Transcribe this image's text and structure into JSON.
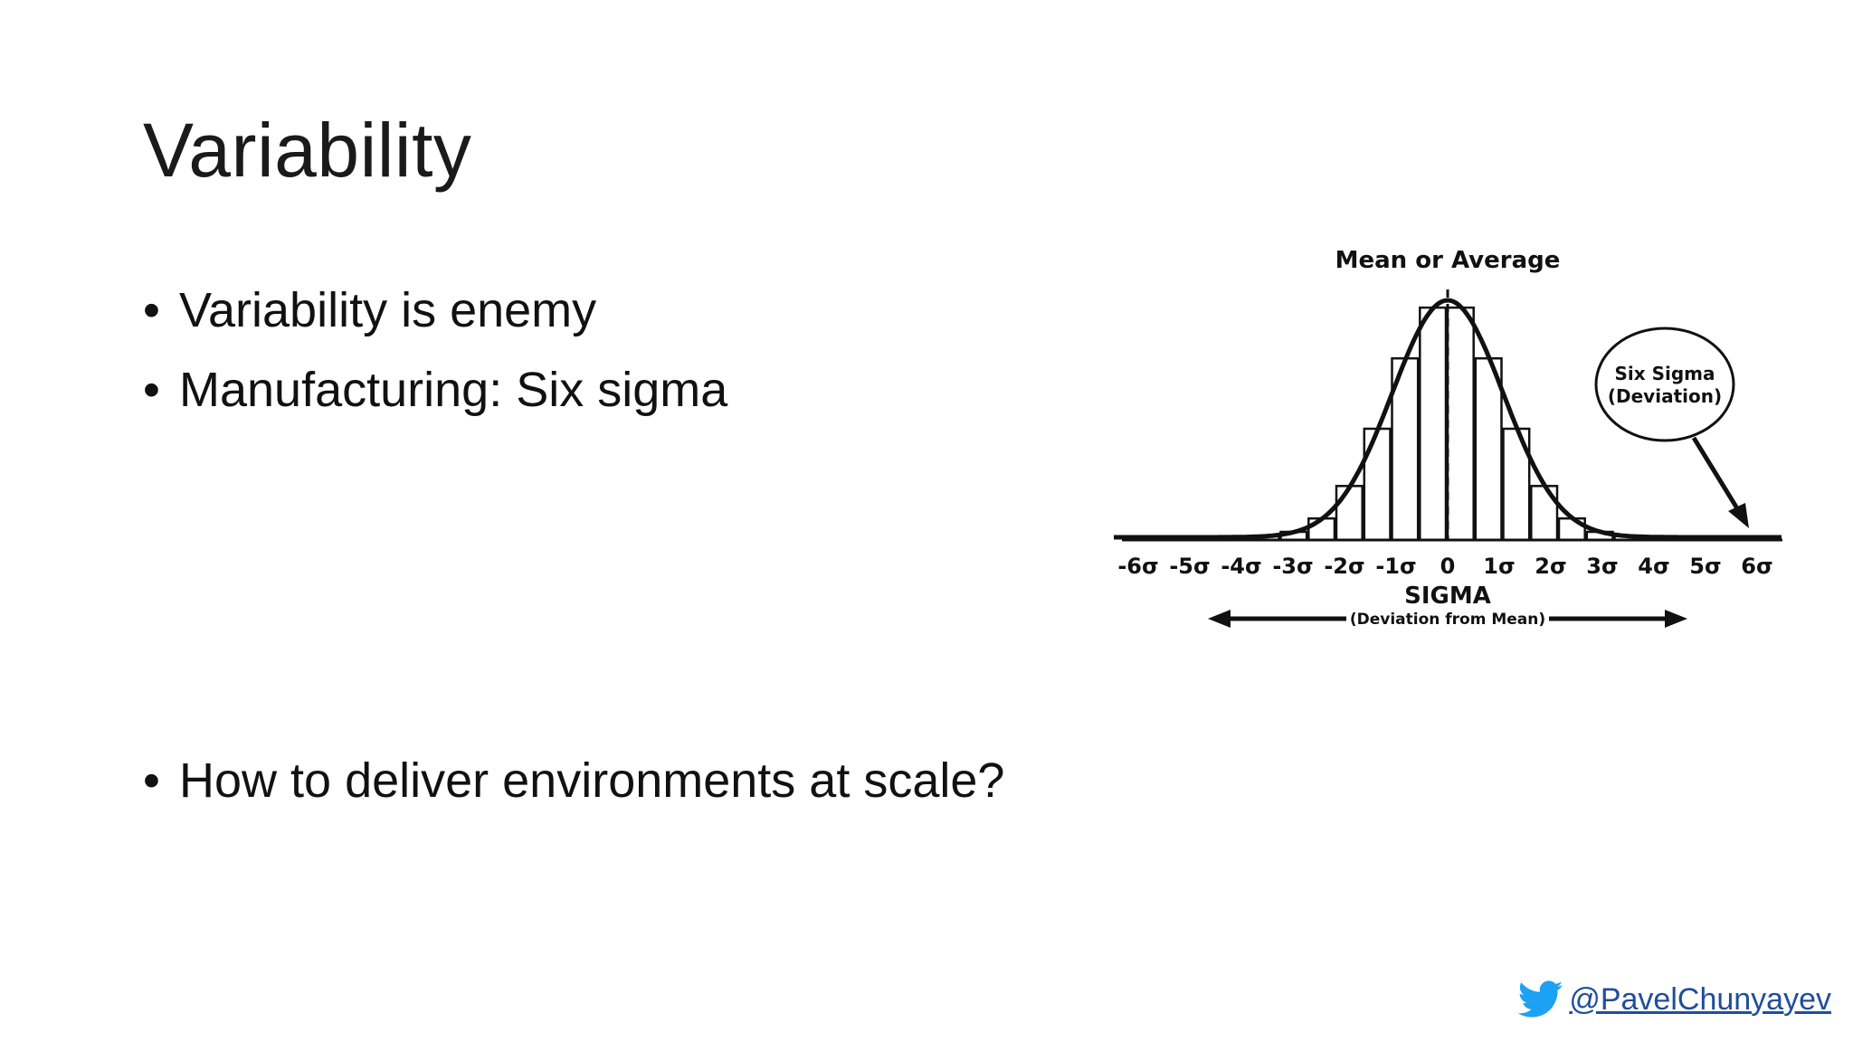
{
  "slide": {
    "title": "Variability",
    "bullets": [
      "Variability is enemy",
      "Manufacturing: Six sigma",
      "How to deliver environments at scale?"
    ],
    "bullet_char": "•"
  },
  "figure": {
    "top_label": "Mean or Average",
    "callout_line1": "Six Sigma",
    "callout_line2": "(Deviation)",
    "axis_title": "SIGMA",
    "axis_subtitle": "(Deviation from Mean)",
    "ticks": [
      "-6σ",
      "-5σ",
      "-4σ",
      "-3σ",
      "-2σ",
      "-1σ",
      "0",
      "1σ",
      "2σ",
      "3σ",
      "4σ",
      "5σ",
      "6σ"
    ]
  },
  "footer": {
    "handle": "@PavelChunyayev",
    "icon": "twitter-bird-icon",
    "icon_color": "#1da1f2"
  }
}
